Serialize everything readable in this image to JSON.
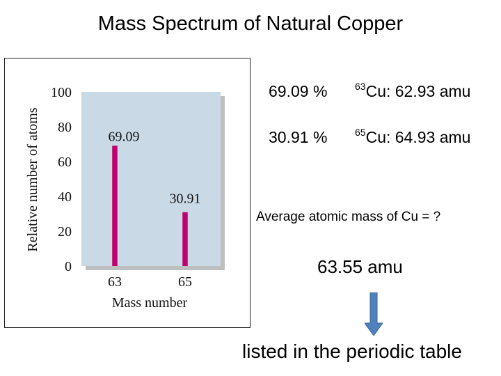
{
  "title": "Mass Spectrum of Natural Copper",
  "chart_data": {
    "type": "bar",
    "categories": [
      "63",
      "65"
    ],
    "values": [
      69.09,
      30.91
    ],
    "data_labels": [
      "69.09",
      "30.91"
    ],
    "xlabel": "Mass number",
    "ylabel": "Relative number of atoms",
    "ylim": [
      0,
      100
    ],
    "yticks": [
      0,
      20,
      40,
      60,
      80,
      100
    ],
    "grid": false,
    "bar_color": "#c0006e",
    "plot_background": "#c9d9e6"
  },
  "isotopes": [
    {
      "percent": "69.09 %",
      "mass_number": "63",
      "symbol_mass": "Cu: 62.93 amu"
    },
    {
      "percent": "30.91 %",
      "mass_number": "65",
      "symbol_mass": "Cu: 64.93 amu"
    }
  ],
  "question": "Average atomic mass of Cu = ?",
  "answer": "63.55 amu",
  "caption": "listed in the periodic table",
  "arrow_color": "#4f81bd",
  "arrow_icon": "down-arrow-icon"
}
